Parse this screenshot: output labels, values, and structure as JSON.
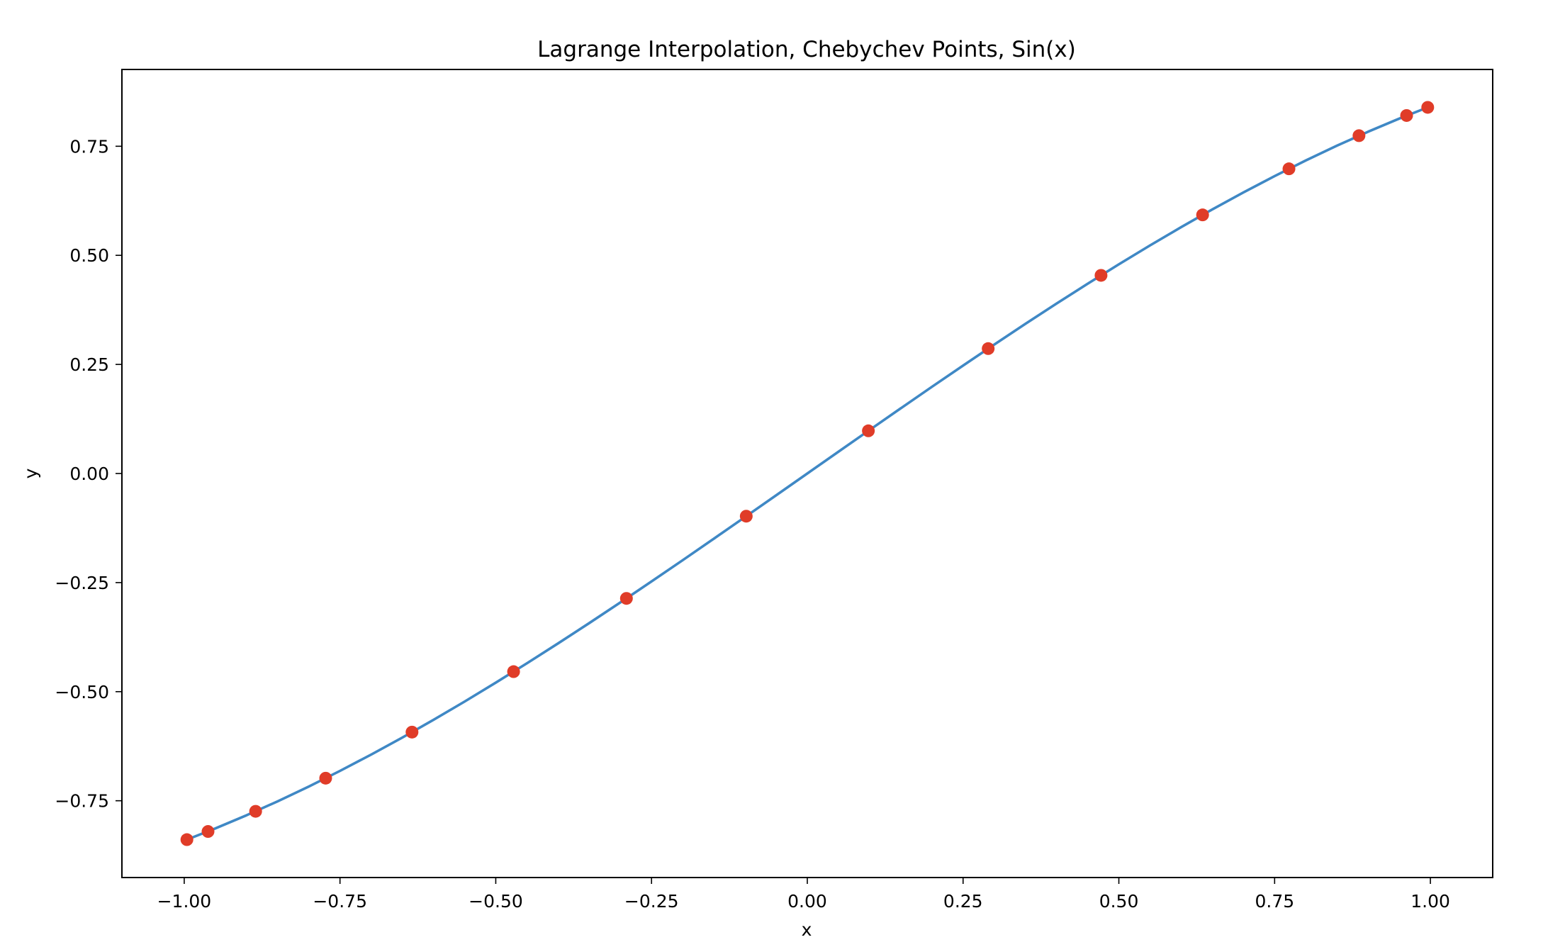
{
  "chart_data": {
    "type": "scatter",
    "title": "Lagrange Interpolation, Chebychev Points, Sin(x)",
    "xlabel": "x",
    "ylabel": "y",
    "xlim": [
      -1.1,
      1.1
    ],
    "ylim": [
      -0.926,
      0.926
    ],
    "xticks": [
      -1.0,
      -0.75,
      -0.5,
      -0.25,
      0.0,
      0.25,
      0.5,
      0.75,
      1.0
    ],
    "xtick_labels": [
      "−1.00",
      "−0.75",
      "−0.50",
      "−0.25",
      "0.00",
      "0.25",
      "0.50",
      "0.75",
      "1.00"
    ],
    "yticks": [
      -0.75,
      -0.5,
      -0.25,
      0.0,
      0.25,
      0.5,
      0.75
    ],
    "ytick_labels": [
      "−0.75",
      "−0.50",
      "−0.25",
      "0.00",
      "0.25",
      "0.50",
      "0.75"
    ],
    "grid": false,
    "series": [
      {
        "kind": "line",
        "color": "#3f88c5",
        "x": [
          -1.0,
          -0.95,
          -0.9,
          -0.85,
          -0.8,
          -0.75,
          -0.7,
          -0.65,
          -0.6,
          -0.55,
          -0.5,
          -0.45,
          -0.4,
          -0.35,
          -0.3,
          -0.25,
          -0.2,
          -0.15,
          -0.1,
          -0.05,
          0.0,
          0.05,
          0.1,
          0.15,
          0.2,
          0.25,
          0.3,
          0.35,
          0.4,
          0.45,
          0.5,
          0.55,
          0.6,
          0.65,
          0.7,
          0.75,
          0.8,
          0.85,
          0.9,
          0.95,
          1.0
        ],
        "y": [
          -0.8415,
          -0.8134,
          -0.7833,
          -0.7513,
          -0.7174,
          -0.6816,
          -0.6442,
          -0.6052,
          -0.5646,
          -0.5227,
          -0.4794,
          -0.435,
          -0.3894,
          -0.3429,
          -0.2955,
          -0.2474,
          -0.1987,
          -0.1494,
          -0.0998,
          -0.05,
          0.0,
          0.05,
          0.0998,
          0.1494,
          0.1987,
          0.2474,
          0.2955,
          0.3429,
          0.3894,
          0.435,
          0.4794,
          0.5227,
          0.5646,
          0.6052,
          0.6442,
          0.6816,
          0.7174,
          0.7513,
          0.7833,
          0.8134,
          0.8415
        ]
      },
      {
        "kind": "scatter",
        "color": "#e03c28",
        "x": [
          -0.9957,
          -0.9618,
          -0.8854,
          -0.773,
          -0.6344,
          -0.4714,
          -0.2903,
          -0.098,
          0.098,
          0.2903,
          0.4714,
          0.6344,
          0.773,
          0.8854,
          0.9618,
          0.9957
        ],
        "y": [
          -0.8391,
          -0.8205,
          -0.7743,
          -0.6983,
          -0.5927,
          -0.4541,
          -0.2863,
          -0.0978,
          0.0978,
          0.2863,
          0.4541,
          0.5927,
          0.6983,
          0.7743,
          0.8205,
          0.8391
        ]
      }
    ]
  }
}
